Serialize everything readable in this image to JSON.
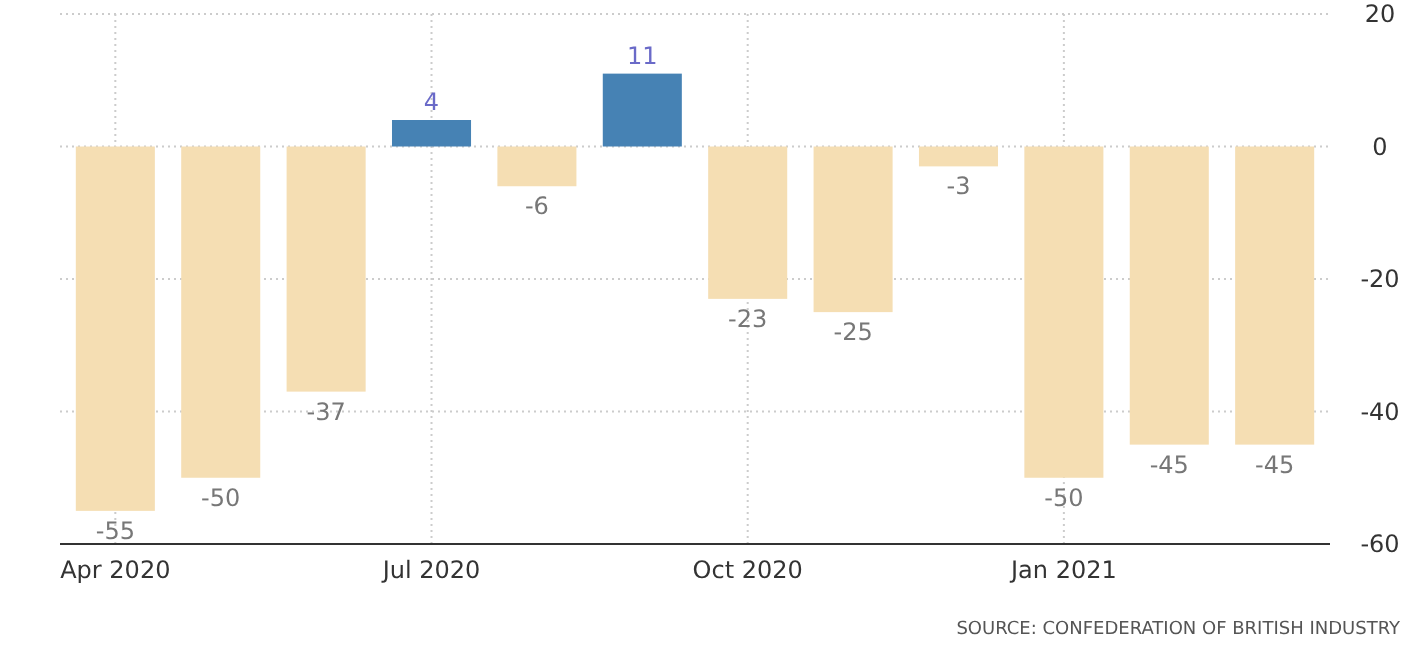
{
  "chart_data": {
    "type": "bar",
    "categories": [
      "Apr 2020",
      null,
      null,
      "Jul 2020",
      null,
      null,
      "Oct 2020",
      null,
      null,
      "Jan 2021",
      null,
      null
    ],
    "values": [
      -55,
      -50,
      -37,
      4,
      -6,
      11,
      -23,
      -25,
      -3,
      -50,
      -45,
      -45
    ],
    "colors": [
      "#f5deb3",
      "#f5deb3",
      "#f5deb3",
      "#4682b4",
      "#f5deb3",
      "#4682b4",
      "#f5deb3",
      "#f5deb3",
      "#f5deb3",
      "#f5deb3",
      "#f5deb3",
      "#f5deb3"
    ],
    "ylim": [
      -60,
      20
    ],
    "yticks": [
      -60,
      -40,
      -20,
      0,
      20
    ],
    "grid": true,
    "data_labels": true,
    "annotations": [
      "SOURCE: CONFEDERATION OF BRITISH INDUSTRY"
    ]
  }
}
